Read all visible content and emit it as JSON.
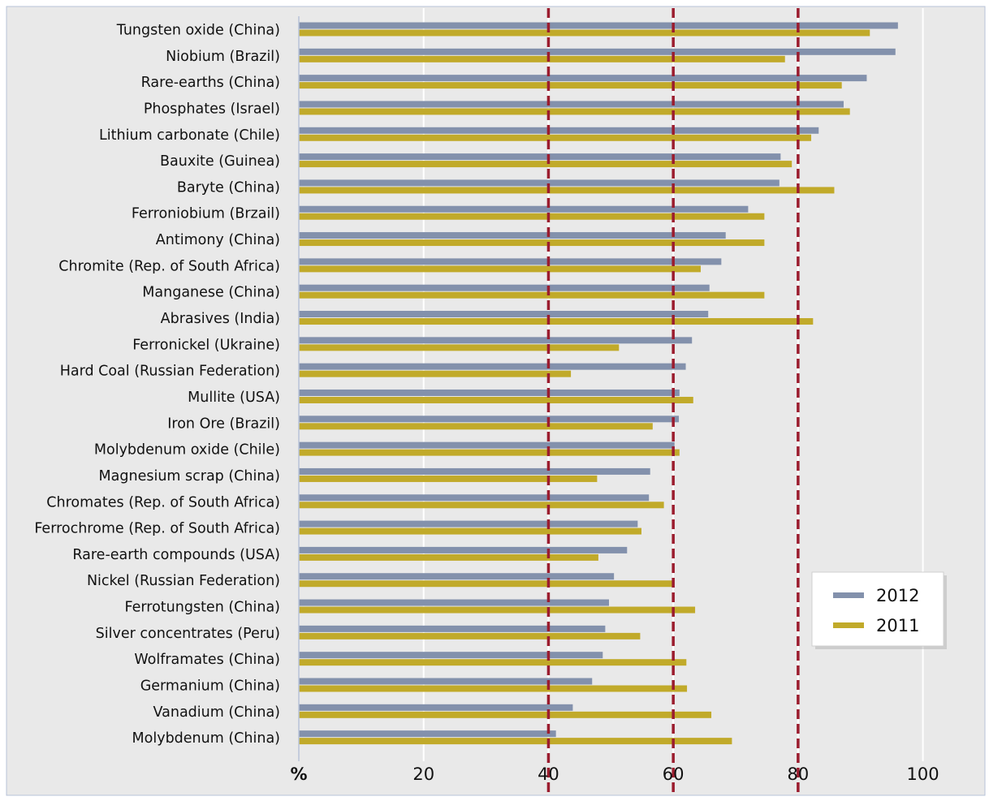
{
  "chart_data": {
    "type": "bar",
    "orientation": "horizontal",
    "categories": [
      "Tungsten oxide (China)",
      "Niobium (Brazil)",
      "Rare-earths (China)",
      "Phosphates (Israel)",
      "Lithium carbonate (Chile)",
      "Bauxite (Guinea)",
      "Baryte (China)",
      "Ferroniobium (Brzail)",
      "Antimony (China)",
      "Chromite (Rep. of South Africa)",
      "Manganese (China)",
      "Abrasives (India)",
      "Ferronickel (Ukraine)",
      "Hard Coal (Russian Federation)",
      "Mullite (USA)",
      "Iron Ore (Brazil)",
      "Molybdenum oxide (Chile)",
      "Magnesium scrap (China)",
      "Chromates (Rep. of South Africa)",
      "Ferrochrome (Rep. of South Africa)",
      "Rare-earth compounds (USA)",
      "Nickel (Russian Federation)",
      "Ferrotungsten (China)",
      "Silver concentrates (Peru)",
      "Wolframates (China)",
      "Germanium (China)",
      "Vanadium (China)",
      "Molybdenum (China)"
    ],
    "series": [
      {
        "name": "2012",
        "color": "#8391ac",
        "values": [
          96,
          95.6,
          91,
          87.3,
          83.3,
          77.2,
          77,
          72,
          68.4,
          67.7,
          65.8,
          65.6,
          63,
          62,
          61,
          60.9,
          60.2,
          56.3,
          56.1,
          54.3,
          52.6,
          50.5,
          49.7,
          49.1,
          48.7,
          47,
          43.9,
          41.2
        ]
      },
      {
        "name": "2011",
        "color": "#c1aa2a",
        "values": [
          91.5,
          77.9,
          87,
          88.3,
          82.1,
          79,
          85.8,
          74.6,
          74.6,
          64.4,
          74.6,
          82.4,
          51.3,
          43.6,
          63.2,
          56.7,
          61,
          47.8,
          58.5,
          54.9,
          48,
          59.8,
          63.5,
          54.7,
          62.1,
          62.2,
          66.1,
          69.4
        ]
      }
    ],
    "xlim": [
      0,
      100
    ],
    "xticks": [
      "%",
      "20",
      "40",
      "60",
      "80",
      "100"
    ],
    "reference_lines": [
      40,
      60,
      80
    ],
    "reference_line_color": "#9b1c2e",
    "grid": "vertical",
    "background_color": "#e9e9e9",
    "legend": {
      "position": "bottom-right",
      "entries": [
        "2012",
        "2011"
      ]
    }
  }
}
